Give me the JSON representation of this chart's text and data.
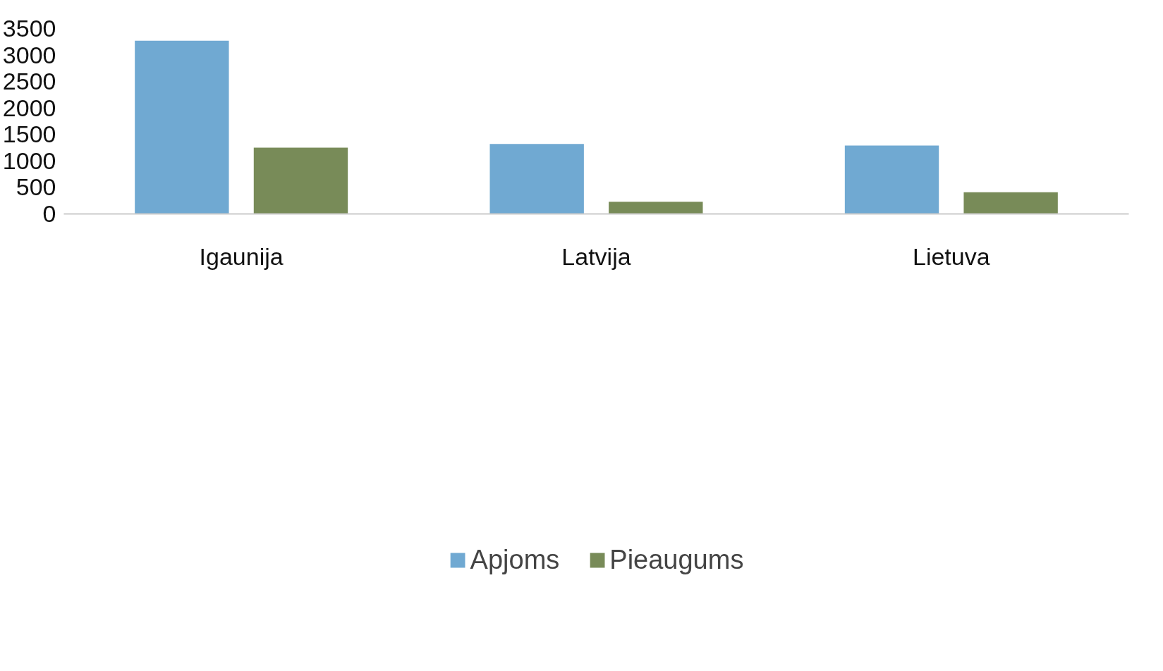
{
  "chart_data": {
    "type": "bar",
    "categories": [
      "Igaunija",
      "Latvija",
      "Lietuva"
    ],
    "series": [
      {
        "name": "Apjoms",
        "color": "#70a9d2",
        "values": [
          3270,
          1320,
          1290
        ]
      },
      {
        "name": "Pieaugums",
        "color": "#788b58",
        "values": [
          1250,
          230,
          410
        ]
      }
    ],
    "ylim": [
      0,
      3500
    ],
    "yticks": [
      0,
      500,
      1000,
      1500,
      2000,
      2500,
      3000,
      3500
    ],
    "grid": false,
    "legend": "bottom"
  }
}
